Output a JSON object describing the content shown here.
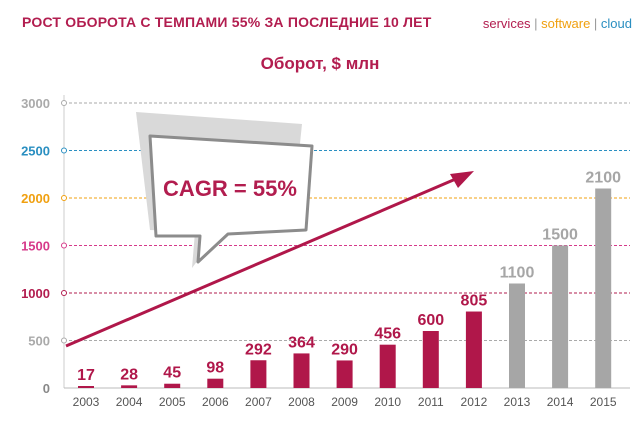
{
  "header": {
    "title": "РОСТ ОБОРОТА С ТЕМПАМИ 55% ЗА ПОСЛЕДНИЕ 10 ЛЕТ",
    "brand": {
      "services": "services",
      "sep1": " | ",
      "software": "software",
      "sep2": " | ",
      "cloud": "cloud"
    }
  },
  "callout": {
    "text": "CAGR = 55%"
  },
  "chart_data": {
    "type": "bar",
    "title": "Оборот, $ млн",
    "xlabel": "",
    "ylabel": "",
    "ylim": [
      0,
      3000
    ],
    "yticks": [
      0,
      500,
      1000,
      1500,
      2000,
      2500,
      3000
    ],
    "categories": [
      "2003",
      "2004",
      "2005",
      "2006",
      "2007",
      "2008",
      "2009",
      "2010",
      "2011",
      "2012",
      "2013",
      "2014",
      "2015"
    ],
    "values": [
      17,
      28,
      45,
      98,
      292,
      364,
      290,
      456,
      600,
      805,
      1100,
      1500,
      2100
    ],
    "data_labels": [
      "17",
      "28",
      "45",
      "98",
      "292",
      "364",
      "290",
      "456",
      "600",
      "805",
      "1100",
      "1500",
      "2100"
    ],
    "grid": true,
    "colors": {
      "actual": "#b0174a",
      "forecast": "#a6a6a6",
      "trend_arrow": "#b0174a",
      "grid_500": "#aaaaaa",
      "grid_1000": "#b21d4f",
      "grid_1500": "#d63a8a",
      "grid_2000": "#f0a010",
      "grid_2500": "#2a8fc1",
      "grid_3000": "#aaaaaa"
    },
    "forecast_from": "2013"
  }
}
